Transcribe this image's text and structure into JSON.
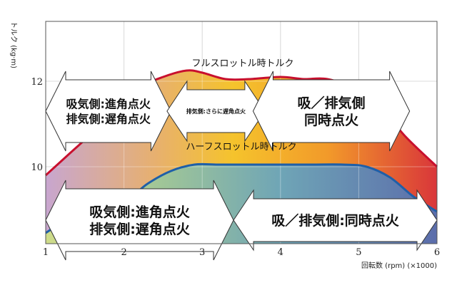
{
  "chart_data": {
    "type": "area",
    "title": "",
    "xlabel": "回転数 (rpm) (×1000)",
    "ylabel": "トルク (kg·m)",
    "xlim": [
      1,
      6
    ],
    "ylim": [
      8.2,
      13.4
    ],
    "x_ticks": [
      "1",
      "2",
      "3",
      "4",
      "5",
      "6"
    ],
    "y_ticks": [
      "10",
      "12"
    ],
    "grid": true,
    "series": [
      {
        "name": "フルスロットル時トルク",
        "color": "#c8102e",
        "points": [
          [
            1.0,
            9.8
          ],
          [
            1.3,
            10.3
          ],
          [
            1.6,
            10.8
          ],
          [
            1.9,
            11.35
          ],
          [
            2.2,
            11.85
          ],
          [
            2.5,
            12.1
          ],
          [
            2.8,
            12.25
          ],
          [
            3.0,
            12.2
          ],
          [
            3.3,
            12.05
          ],
          [
            3.6,
            12.05
          ],
          [
            4.0,
            12.1
          ],
          [
            4.3,
            12.05
          ],
          [
            4.6,
            12.05
          ],
          [
            5.0,
            11.8
          ],
          [
            5.3,
            11.35
          ],
          [
            5.6,
            10.7
          ],
          [
            6.0,
            10.0
          ]
        ]
      },
      {
        "name": "ハーフスロットル時トルク",
        "color": "#1f5fa8",
        "points": [
          [
            1.0,
            8.45
          ],
          [
            1.3,
            8.8
          ],
          [
            1.6,
            9.05
          ],
          [
            1.9,
            9.15
          ],
          [
            2.1,
            9.3
          ],
          [
            2.3,
            9.6
          ],
          [
            2.6,
            9.9
          ],
          [
            2.9,
            10.05
          ],
          [
            3.2,
            10.05
          ],
          [
            3.6,
            10.05
          ],
          [
            4.0,
            10.05
          ],
          [
            4.4,
            10.05
          ],
          [
            4.8,
            10.05
          ],
          [
            5.1,
            10.0
          ],
          [
            5.4,
            9.75
          ],
          [
            5.7,
            9.3
          ],
          [
            6.0,
            8.95
          ]
        ]
      }
    ],
    "annotations": [
      {
        "kind": "arrow",
        "x_from": 1.0,
        "x_to": 2.6,
        "y": 11.3,
        "lines": [
          "吸気側:進角点火",
          "排気側:遅角点火"
        ]
      },
      {
        "kind": "arrow",
        "x_from": 2.55,
        "x_to": 3.8,
        "y": 11.3,
        "lines": [
          "排気側:さらに遅角点火"
        ]
      },
      {
        "kind": "arrow",
        "x_from": 3.65,
        "x_to": 5.65,
        "y": 11.3,
        "lines": [
          "吸／排気側",
          "同時点火"
        ]
      },
      {
        "kind": "arrow",
        "x_from": 1.0,
        "x_to": 3.4,
        "y": 8.75,
        "lines": [
          "吸気側:進角点火",
          "排気側:遅角点火"
        ]
      },
      {
        "kind": "arrow",
        "x_from": 3.4,
        "x_to": 6.0,
        "y": 8.75,
        "lines": [
          "吸／排気側:同時点火"
        ]
      }
    ]
  }
}
